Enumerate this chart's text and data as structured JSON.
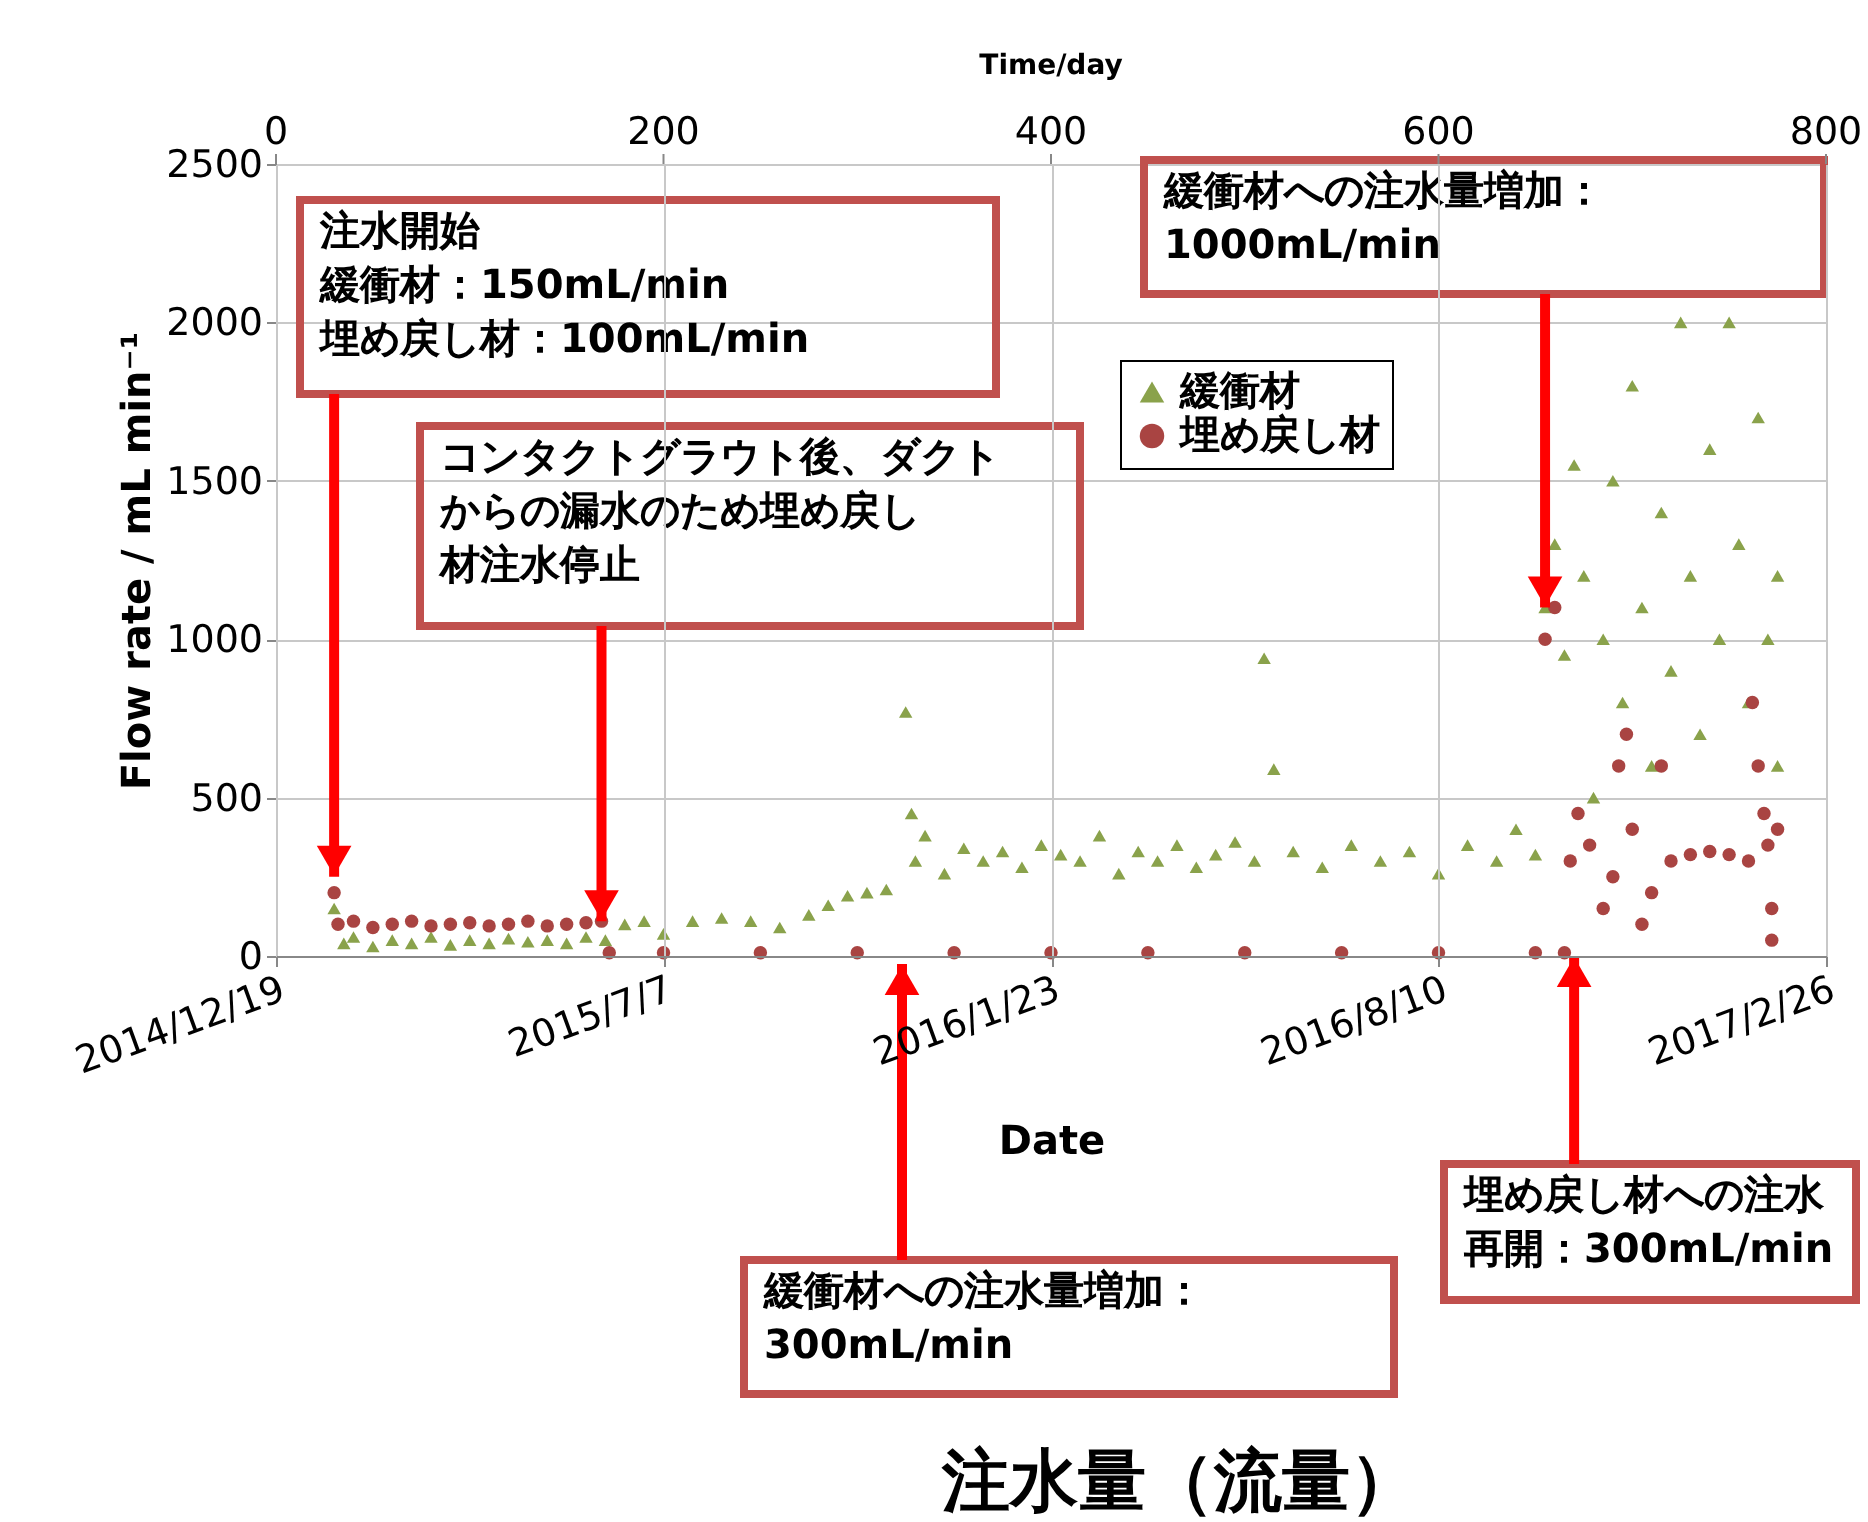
{
  "chart_data": {
    "type": "scatter",
    "title": "注水量（流量）",
    "xlabel": "Date",
    "x2label": "Time/day",
    "ylabel": "Flow rate / mL min⁻¹",
    "xlim": [
      "2014-12-19",
      "2017-02-26"
    ],
    "xticks": [
      {
        "value": "2014-12-19",
        "label": "2014/12/19"
      },
      {
        "value": "2015-07-07",
        "label": "2015/7/7"
      },
      {
        "value": "2016-01-23",
        "label": "2016/1/23"
      },
      {
        "value": "2016-08-10",
        "label": "2016/8/10"
      },
      {
        "value": "2017-02-26",
        "label": "2017/2/26"
      }
    ],
    "x2lim": [
      0,
      800
    ],
    "x2ticks": [
      0,
      200,
      400,
      600,
      800
    ],
    "ylim": [
      0,
      2500
    ],
    "yticks": [
      0,
      500,
      1000,
      1500,
      2000,
      2500
    ],
    "grid": true,
    "legend": "top right",
    "series": [
      {
        "name": "緩衝材",
        "color": "#8aa24b",
        "marker": "triangle",
        "x": [
          "2015-01-18",
          "2015-01-23",
          "2015-01-28",
          "2015-02-07",
          "2015-02-17",
          "2015-02-27",
          "2015-03-09",
          "2015-03-19",
          "2015-03-29",
          "2015-04-08",
          "2015-04-18",
          "2015-04-28",
          "2015-05-08",
          "2015-05-18",
          "2015-05-28",
          "2015-06-07",
          "2015-06-17",
          "2015-06-27",
          "2015-07-07",
          "2015-07-22",
          "2015-08-06",
          "2015-08-21",
          "2015-09-05",
          "2015-09-20",
          "2015-09-30",
          "2015-10-10",
          "2015-10-20",
          "2015-10-30",
          "2015-11-09",
          "2015-11-12",
          "2015-11-14",
          "2015-11-19",
          "2015-11-29",
          "2015-12-09",
          "2015-12-19",
          "2015-12-29",
          "2016-01-08",
          "2016-01-18",
          "2016-01-28",
          "2016-02-07",
          "2016-02-17",
          "2016-02-27",
          "2016-03-08",
          "2016-03-18",
          "2016-03-28",
          "2016-04-07",
          "2016-04-17",
          "2016-04-27",
          "2016-05-07",
          "2016-05-12",
          "2016-05-17",
          "2016-05-27",
          "2016-06-11",
          "2016-06-26",
          "2016-07-11",
          "2016-07-26",
          "2016-08-10",
          "2016-08-25",
          "2016-09-09",
          "2016-09-19",
          "2016-09-29",
          "2016-10-04",
          "2016-10-09",
          "2016-10-14",
          "2016-10-19",
          "2016-10-24",
          "2016-10-29",
          "2016-11-03",
          "2016-11-08",
          "2016-11-13",
          "2016-11-18",
          "2016-11-23",
          "2016-11-28",
          "2016-12-03",
          "2016-12-08",
          "2016-12-13",
          "2016-12-18",
          "2016-12-23",
          "2016-12-28",
          "2017-01-02",
          "2017-01-07",
          "2017-01-12",
          "2017-01-17",
          "2017-01-22",
          "2017-01-27",
          "2017-02-01",
          "2017-02-01"
        ],
        "values": [
          150,
          40,
          60,
          30,
          50,
          40,
          60,
          35,
          50,
          40,
          55,
          45,
          50,
          40,
          60,
          50,
          100,
          110,
          70,
          110,
          120,
          110,
          90,
          130,
          160,
          190,
          200,
          210,
          770,
          450,
          300,
          380,
          260,
          340,
          300,
          330,
          280,
          350,
          320,
          300,
          380,
          260,
          330,
          300,
          350,
          280,
          320,
          360,
          300,
          940,
          590,
          330,
          280,
          350,
          300,
          330,
          260,
          350,
          300,
          400,
          320,
          1100,
          1300,
          950,
          1550,
          1200,
          500,
          1000,
          1500,
          800,
          1800,
          1100,
          600,
          1400,
          900,
          2000,
          1200,
          700,
          1600,
          1000,
          2000,
          1300,
          800,
          1700,
          1000,
          600,
          1200
        ]
      },
      {
        "name": "埋め戻し材",
        "color": "#a94442",
        "marker": "circle",
        "x": [
          "2015-01-18",
          "2015-01-20",
          "2015-01-28",
          "2015-02-07",
          "2015-02-17",
          "2015-02-27",
          "2015-03-09",
          "2015-03-19",
          "2015-03-29",
          "2015-04-08",
          "2015-04-18",
          "2015-04-28",
          "2015-05-08",
          "2015-05-18",
          "2015-05-28",
          "2015-06-05",
          "2015-06-09",
          "2015-07-07",
          "2015-08-26",
          "2015-10-15",
          "2015-12-04",
          "2016-01-23",
          "2016-03-13",
          "2016-05-02",
          "2016-06-21",
          "2016-08-10",
          "2016-09-29",
          "2016-10-04",
          "2016-10-09",
          "2016-10-14",
          "2016-10-17",
          "2016-10-21",
          "2016-10-27",
          "2016-11-03",
          "2016-11-08",
          "2016-11-11",
          "2016-11-15",
          "2016-11-18",
          "2016-11-23",
          "2016-11-28",
          "2016-12-03",
          "2016-12-08",
          "2016-12-18",
          "2016-12-28",
          "2017-01-07",
          "2017-01-17",
          "2017-01-19",
          "2017-01-22",
          "2017-01-25",
          "2017-01-27",
          "2017-01-29",
          "2017-01-29",
          "2017-02-01"
        ],
        "values": [
          200,
          100,
          110,
          90,
          100,
          110,
          95,
          100,
          105,
          95,
          100,
          110,
          95,
          100,
          105,
          110,
          10,
          10,
          10,
          10,
          10,
          10,
          10,
          10,
          10,
          10,
          10,
          1000,
          1100,
          10,
          300,
          450,
          350,
          150,
          250,
          600,
          700,
          400,
          100,
          200,
          600,
          300,
          320,
          330,
          320,
          300,
          800,
          600,
          450,
          350,
          150,
          50,
          400
        ]
      }
    ],
    "annotations": [
      {
        "text": "注水開始緩衝材：150mL/min埋め戻し材：100mL/min",
        "x": "2015-01-18",
        "y": 250
      },
      {
        "text": "コンタクトグラウト後、ダクトからの漏水のため埋め戻し材注水停止",
        "x": "2015-06-05",
        "y": 110
      },
      "緩衝材への注水量増加：300mL/min",
      {
        "text": "緩衝材への注水量増加：1000mL/min",
        "x": "2016-10-04",
        "y": 1100
      },
      {
        "text": "埋め戻し材への注水再開：300mL/min",
        "x": "2016-10-19",
        "y": 0
      }
    ]
  }
}
